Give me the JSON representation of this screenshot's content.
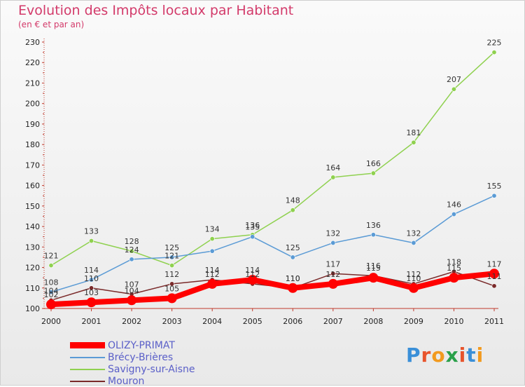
{
  "title": "Evolution des Impôts locaux par Habitant",
  "subtitle": "(en € et par an)",
  "logo": {
    "text": "Proxiti",
    "colors": [
      "#3a8fd8",
      "#e8542c",
      "#f29a1f",
      "#2aa04a",
      "#e8542c",
      "#3a8fd8",
      "#f29a1f"
    ]
  },
  "chart_data": {
    "type": "line",
    "x": [
      "2000",
      "2001",
      "2002",
      "2003",
      "2004",
      "2005",
      "2006",
      "2007",
      "2008",
      "2009",
      "2010",
      "2011"
    ],
    "ylim": [
      100,
      230
    ],
    "yticks": [
      100,
      110,
      120,
      130,
      140,
      150,
      160,
      170,
      180,
      190,
      200,
      210,
      220,
      230
    ],
    "grid": false,
    "legend_position": "bottom-left",
    "series": [
      {
        "name": "Savigny-sur-Aisne",
        "color": "#8fd14f",
        "values": [
          121,
          133,
          128,
          121,
          134,
          136,
          148,
          164,
          166,
          181,
          207,
          225
        ],
        "labels": [
          "121",
          "133",
          "128",
          "121",
          "134",
          "136",
          "148",
          "164",
          "166",
          "181",
          "207",
          "225"
        ]
      },
      {
        "name": "Brécy-Brières",
        "color": "#5b9bd5",
        "values": [
          108,
          114,
          124,
          125,
          128,
          135,
          125,
          132,
          136,
          132,
          146,
          155
        ],
        "labels": [
          "108",
          "114",
          "124",
          "125",
          "",
          "135",
          "125",
          "132",
          "136",
          "132",
          "146",
          "155"
        ]
      },
      {
        "name": "Mouron",
        "color": "#7a2a2a",
        "values": [
          104,
          110,
          107,
          112,
          114,
          112,
          110,
          117,
          116,
          112,
          118,
          111
        ],
        "labels": [
          "104",
          "110",
          "107",
          "112",
          "114",
          "112",
          "110",
          "117",
          "116",
          "112",
          "118",
          "111"
        ]
      },
      {
        "name": "OLIZY-PRIMAT",
        "color": "#ff0000",
        "values": [
          102,
          103,
          104,
          105,
          112,
          114,
          110,
          112,
          115,
          110,
          115,
          117
        ],
        "labels": [
          "102",
          "103",
          "104",
          "105",
          "112",
          "114",
          "110",
          "112",
          "115",
          "110",
          "115",
          "117"
        ]
      }
    ]
  },
  "legend": [
    {
      "name": "OLIZY-PRIMAT",
      "color": "#ff0000",
      "thick": true
    },
    {
      "name": "Brécy-Brières",
      "color": "#5b9bd5",
      "thick": false
    },
    {
      "name": "Savigny-sur-Aisne",
      "color": "#8fd14f",
      "thick": false
    },
    {
      "name": "Mouron",
      "color": "#7a2a2a",
      "thick": false
    }
  ]
}
